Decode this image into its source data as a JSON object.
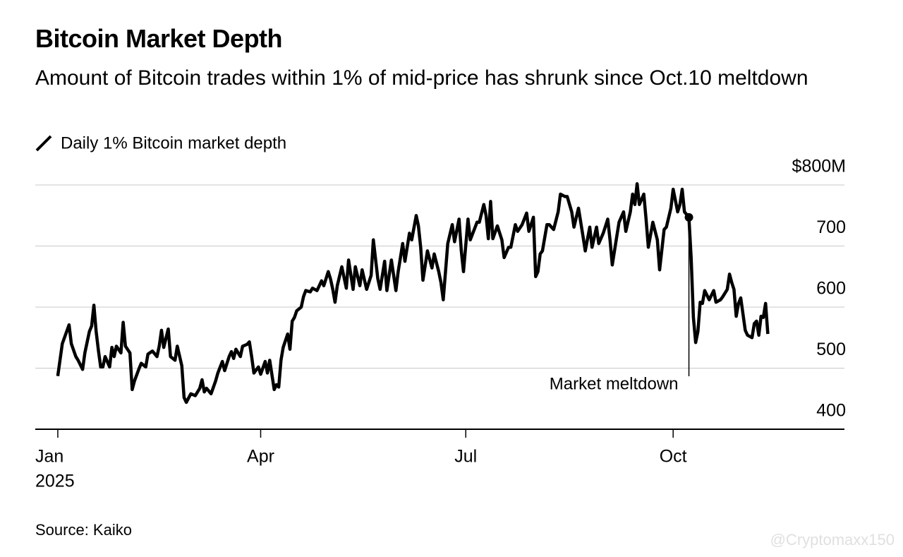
{
  "chart_data": {
    "type": "line",
    "title": "Bitcoin Market Depth",
    "subtitle": "Amount of Bitcoin trades within 1% of mid-price has shrunk since Oct.10 meltdown",
    "source": "Source: Kaiko",
    "watermark": "@Cryptomaxx150",
    "year_label": "2025",
    "xlim": [
      -10,
      349
    ],
    "xticks": [
      {
        "value": 0,
        "label": "Jan"
      },
      {
        "value": 90,
        "label": "Apr"
      },
      {
        "value": 181,
        "label": "Jul"
      },
      {
        "value": 273,
        "label": "Oct"
      }
    ],
    "ylim": [
      400,
      800
    ],
    "yticks": [
      400,
      500,
      600,
      700,
      {
        "value": 800,
        "label": "$800M"
      }
    ],
    "grid": true,
    "annotation": {
      "text": "Market meltdown",
      "x": 280
    },
    "x": [
      0,
      2,
      5,
      6,
      8,
      9,
      11,
      12,
      14,
      15,
      16,
      17,
      18,
      19,
      20,
      21,
      23,
      24,
      25,
      26,
      28,
      29,
      30,
      32,
      33,
      34,
      36,
      37,
      39,
      40,
      42,
      44,
      45,
      46,
      47,
      49,
      50,
      52,
      53,
      55,
      56,
      57,
      59,
      61,
      63,
      64,
      65,
      66,
      68,
      70,
      71,
      73,
      74,
      76,
      77,
      78,
      79,
      81,
      82,
      84,
      85,
      86,
      87,
      89,
      90,
      92,
      93,
      94,
      96,
      97,
      98,
      99,
      100,
      102,
      103,
      104,
      105,
      106,
      108,
      109,
      110,
      112,
      113,
      115,
      117,
      118,
      120,
      121,
      122,
      123,
      124,
      126,
      128,
      129,
      131,
      132,
      134,
      135,
      137,
      139,
      140,
      142,
      143,
      145,
      146,
      148,
      150,
      151,
      153,
      154,
      156,
      157,
      159,
      160,
      161,
      162,
      164,
      166,
      167,
      169,
      170,
      171,
      173,
      175,
      176,
      178,
      179,
      180,
      182,
      183,
      186,
      187,
      189,
      190,
      191,
      192,
      193,
      195,
      197,
      198,
      200,
      201,
      203,
      204,
      206,
      208,
      209,
      211,
      212,
      213,
      214,
      215,
      217,
      218,
      220,
      222,
      223,
      225,
      226,
      228,
      229,
      231,
      233,
      234,
      236,
      237,
      239,
      240,
      242,
      244,
      245,
      246,
      248,
      249,
      251,
      252,
      254,
      255,
      256,
      257,
      258,
      260,
      261,
      262,
      264,
      266,
      267,
      269,
      270,
      272,
      273,
      275,
      276,
      277,
      278,
      280,
      281,
      282,
      283,
      284,
      285,
      286,
      287,
      289,
      291,
      292,
      294,
      295,
      297,
      298,
      299,
      300,
      301,
      302,
      303,
      305,
      306,
      308,
      309,
      310,
      311,
      312,
      313,
      314,
      315
    ],
    "series": [
      {
        "name": "Daily 1% Bitcoin market depth",
        "color": "#000000",
        "values": [
          487,
          540,
          571,
          540,
          519,
          513,
          498,
          525,
          560,
          569,
          603,
          560,
          529,
          502,
          502,
          519,
          502,
          534,
          519,
          536,
          525,
          575,
          536,
          525,
          465,
          479,
          499,
          508,
          502,
          523,
          528,
          519,
          536,
          562,
          534,
          564,
          519,
          513,
          536,
          504,
          452,
          444,
          458,
          455,
          467,
          481,
          461,
          467,
          458,
          479,
          492,
          511,
          496,
          519,
          527,
          516,
          531,
          519,
          536,
          539,
          543,
          519,
          492,
          502,
          490,
          511,
          492,
          513,
          465,
          473,
          469,
          513,
          534,
          556,
          531,
          577,
          583,
          594,
          600,
          617,
          627,
          625,
          631,
          627,
          643,
          635,
          658,
          646,
          629,
          608,
          635,
          666,
          631,
          677,
          629,
          666,
          635,
          661,
          629,
          652,
          710,
          646,
          629,
          675,
          627,
          677,
          627,
          658,
          704,
          675,
          721,
          710,
          750,
          733,
          698,
          644,
          692,
          664,
          687,
          658,
          640,
          612,
          704,
          735,
          707,
          744,
          692,
          658,
          744,
          710,
          739,
          739,
          768,
          750,
          712,
          773,
          712,
          733,
          710,
          681,
          698,
          698,
          735,
          724,
          735,
          754,
          724,
          747,
          650,
          658,
          687,
          692,
          735,
          735,
          727,
          756,
          785,
          781,
          781,
          756,
          731,
          762,
          716,
          692,
          731,
          698,
          731,
          704,
          721,
          744,
          710,
          669,
          716,
          739,
          756,
          724,
          756,
          785,
          768,
          802,
          768,
          785,
          744,
          698,
          739,
          710,
          661,
          727,
          731,
          762,
          793,
          756,
          768,
          793,
          756,
          747,
          681,
          583,
          542,
          560,
          608,
          606,
          627,
          612,
          627,
          608,
          612,
          617,
          629,
          654,
          640,
          629,
          585,
          606,
          615,
          562,
          554,
          550,
          573,
          577,
          554,
          585,
          583,
          606,
          556
        ]
      }
    ]
  }
}
